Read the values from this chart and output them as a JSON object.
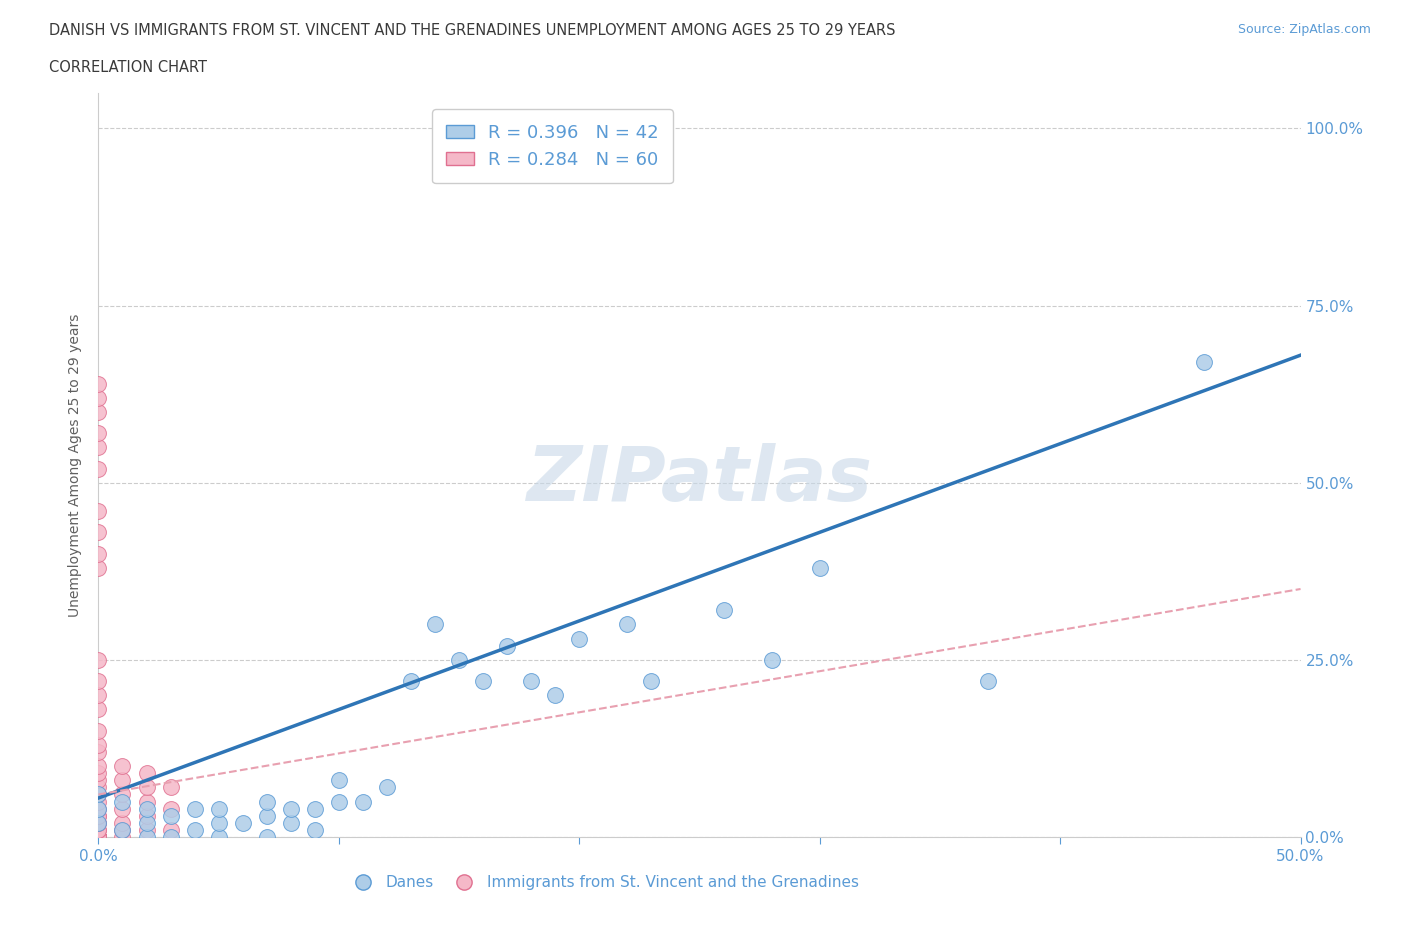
{
  "title_line1": "DANISH VS IMMIGRANTS FROM ST. VINCENT AND THE GRENADINES UNEMPLOYMENT AMONG AGES 25 TO 29 YEARS",
  "title_line2": "CORRELATION CHART",
  "source_text": "Source: ZipAtlas.com",
  "ylabel": "Unemployment Among Ages 25 to 29 years",
  "xlim": [
    0.0,
    0.5
  ],
  "ylim": [
    0.0,
    1.05
  ],
  "xticks": [
    0.0,
    0.1,
    0.2,
    0.3,
    0.4,
    0.5
  ],
  "xticklabels": [
    "0.0%",
    "",
    "",
    "",
    "",
    "50.0%"
  ],
  "yticks": [
    0.0,
    0.25,
    0.5,
    0.75,
    1.0
  ],
  "yticklabels": [
    "0.0%",
    "25.0%",
    "50.0%",
    "75.0%",
    "100.0%"
  ],
  "danes_color": "#aecde8",
  "danes_edge_color": "#5b9bd5",
  "immigrants_color": "#f5b8c8",
  "immigrants_edge_color": "#e07090",
  "danes_line_color": "#2e75b6",
  "immigrants_line_color": "#e8a0b0",
  "danes_R": 0.396,
  "danes_N": 42,
  "immigrants_R": 0.284,
  "immigrants_N": 60,
  "watermark": "ZIPatlas",
  "watermark_color": "#c8d8e8",
  "background_color": "#ffffff",
  "grid_color": "#cccccc",
  "danes_x": [
    0.0,
    0.0,
    0.0,
    0.01,
    0.01,
    0.02,
    0.02,
    0.02,
    0.03,
    0.03,
    0.04,
    0.04,
    0.05,
    0.05,
    0.05,
    0.06,
    0.07,
    0.07,
    0.07,
    0.08,
    0.08,
    0.09,
    0.09,
    0.1,
    0.1,
    0.11,
    0.12,
    0.13,
    0.14,
    0.15,
    0.16,
    0.17,
    0.18,
    0.19,
    0.2,
    0.22,
    0.23,
    0.26,
    0.28,
    0.3,
    0.37,
    0.46
  ],
  "danes_y": [
    0.02,
    0.04,
    0.06,
    0.01,
    0.05,
    0.0,
    0.02,
    0.04,
    0.0,
    0.03,
    0.01,
    0.04,
    0.0,
    0.02,
    0.04,
    0.02,
    0.0,
    0.03,
    0.05,
    0.02,
    0.04,
    0.01,
    0.04,
    0.05,
    0.08,
    0.05,
    0.07,
    0.22,
    0.3,
    0.25,
    0.22,
    0.27,
    0.22,
    0.2,
    0.28,
    0.3,
    0.22,
    0.32,
    0.25,
    0.38,
    0.22,
    0.67
  ],
  "immigrants_x": [
    0.0,
    0.0,
    0.0,
    0.0,
    0.0,
    0.0,
    0.0,
    0.0,
    0.0,
    0.0,
    0.0,
    0.0,
    0.0,
    0.0,
    0.0,
    0.0,
    0.0,
    0.0,
    0.0,
    0.0,
    0.0,
    0.0,
    0.0,
    0.0,
    0.0,
    0.0,
    0.0,
    0.0,
    0.0,
    0.0,
    0.0,
    0.0,
    0.0,
    0.0,
    0.0,
    0.0,
    0.0,
    0.0,
    0.0,
    0.0,
    0.0,
    0.0,
    0.0,
    0.0,
    0.0,
    0.01,
    0.01,
    0.01,
    0.01,
    0.01,
    0.01,
    0.01,
    0.02,
    0.02,
    0.02,
    0.02,
    0.02,
    0.03,
    0.03,
    0.03
  ],
  "immigrants_y": [
    0.0,
    0.0,
    0.0,
    0.0,
    0.0,
    0.0,
    0.0,
    0.0,
    0.0,
    0.0,
    0.0,
    0.0,
    0.0,
    0.0,
    0.0,
    0.01,
    0.01,
    0.02,
    0.02,
    0.03,
    0.03,
    0.04,
    0.05,
    0.06,
    0.07,
    0.08,
    0.09,
    0.1,
    0.12,
    0.13,
    0.15,
    0.18,
    0.2,
    0.22,
    0.25,
    0.38,
    0.4,
    0.43,
    0.46,
    0.52,
    0.55,
    0.57,
    0.6,
    0.62,
    0.64,
    0.0,
    0.01,
    0.02,
    0.04,
    0.06,
    0.08,
    0.1,
    0.01,
    0.03,
    0.05,
    0.07,
    0.09,
    0.01,
    0.04,
    0.07
  ],
  "danes_trendline_x": [
    0.0,
    0.5
  ],
  "danes_trendline_y": [
    0.055,
    0.68
  ],
  "immigrants_trendline_x": [
    0.0,
    0.5
  ],
  "immigrants_trendline_y": [
    0.06,
    0.35
  ]
}
